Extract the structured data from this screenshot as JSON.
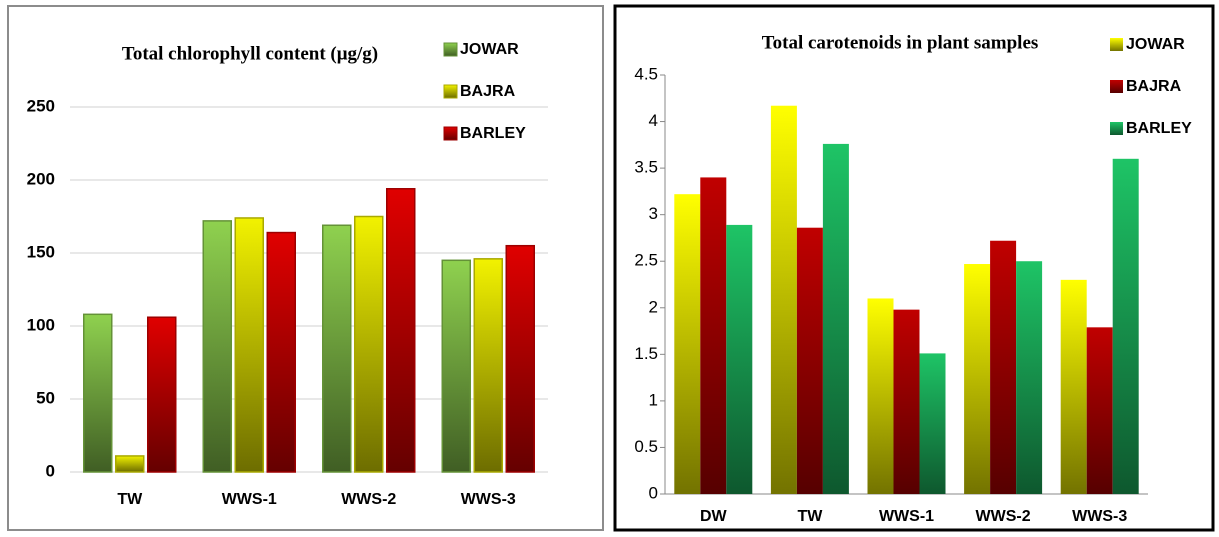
{
  "chart_data": [
    {
      "type": "bar",
      "title": "Total chlorophyll content (μg/g)",
      "categories": [
        "TW",
        "WWS-1",
        "WWS-2",
        "WWS-3"
      ],
      "series": [
        {
          "name": "JOWAR",
          "color": "#8fd14f",
          "values": [
            108,
            172,
            169,
            145
          ]
        },
        {
          "name": "BAJRA",
          "color": "#f2f200",
          "values": [
            11,
            174,
            175,
            146
          ]
        },
        {
          "name": "BARLEY",
          "color": "#e00000",
          "values": [
            106,
            164,
            194,
            155
          ]
        }
      ],
      "ylim": [
        0,
        250
      ],
      "yticks": [
        0,
        50,
        100,
        150,
        200,
        250
      ],
      "grid": true,
      "legend": "top-right"
    },
    {
      "type": "bar",
      "title": "Total carotenoids  in plant samples",
      "categories": [
        "DW",
        "TW",
        "WWS-1",
        "WWS-2",
        "WWS-3"
      ],
      "series": [
        {
          "name": "JOWAR",
          "color": "#ffff00",
          "values": [
            3.22,
            4.17,
            2.1,
            2.47,
            2.3
          ]
        },
        {
          "name": "BAJRA",
          "color": "#c00000",
          "values": [
            3.4,
            2.86,
            1.98,
            2.72,
            1.79
          ]
        },
        {
          "name": "BARLEY",
          "color": "#1ec466",
          "values": [
            2.89,
            3.76,
            1.51,
            2.5,
            3.6
          ]
        }
      ],
      "ylim": [
        0,
        4.5
      ],
      "yticks": [
        0,
        0.5,
        1,
        1.5,
        2,
        2.5,
        3,
        3.5,
        4,
        4.5
      ],
      "grid": false,
      "legend": "top-right"
    }
  ]
}
